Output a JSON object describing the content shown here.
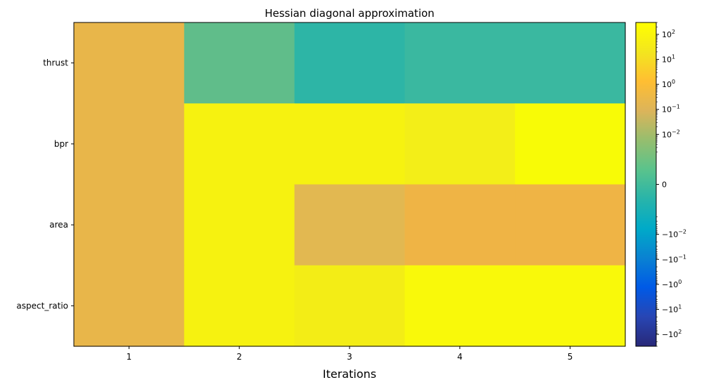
{
  "chart_data": {
    "type": "heatmap",
    "title": "Hessian diagonal approximation",
    "xlabel": "Iterations",
    "ylabel": "",
    "x_categories": [
      "1",
      "2",
      "3",
      "4",
      "5"
    ],
    "y_categories": [
      "thrust",
      "bpr",
      "area",
      "aspect_ratio"
    ],
    "cell_colors": [
      [
        "#e8b64a",
        "#60bd8a",
        "#2db5a6",
        "#3ab8a0",
        "#3ab8a0"
      ],
      [
        "#e8b64a",
        "#f6f210",
        "#f6f210",
        "#f3ee18",
        "#f8fb06"
      ],
      [
        "#e8b64a",
        "#f6f210",
        "#e2b851",
        "#efb445",
        "#efb445"
      ],
      [
        "#e8b64a",
        "#f6f210",
        "#f3ed16",
        "#f9f90a",
        "#f9f90a"
      ]
    ],
    "colorbar": {
      "scale": "symlog",
      "range": [
        -300,
        300
      ],
      "ticks": [
        {
          "base": "10",
          "exp": "2",
          "sign": ""
        },
        {
          "base": "10",
          "exp": "1",
          "sign": ""
        },
        {
          "base": "10",
          "exp": "0",
          "sign": ""
        },
        {
          "base": "10",
          "exp": "−1",
          "sign": ""
        },
        {
          "base": "10",
          "exp": "−2",
          "sign": ""
        },
        {
          "base": "0",
          "exp": "",
          "sign": ""
        },
        {
          "base": "10",
          "exp": "−2",
          "sign": "−"
        },
        {
          "base": "10",
          "exp": "−1",
          "sign": "−"
        },
        {
          "base": "10",
          "exp": "0",
          "sign": "−"
        },
        {
          "base": "10",
          "exp": "1",
          "sign": "−"
        },
        {
          "base": "10",
          "exp": "2",
          "sign": "−"
        }
      ],
      "gradient_stops": [
        "#ffff00",
        "#f3e61e",
        "#ffbe32",
        "#dcb45a",
        "#96be6e",
        "#5ac38c",
        "#28b4aa",
        "#00aac8",
        "#0a82d2",
        "#005ae6",
        "#2846b4",
        "#282878"
      ]
    }
  }
}
